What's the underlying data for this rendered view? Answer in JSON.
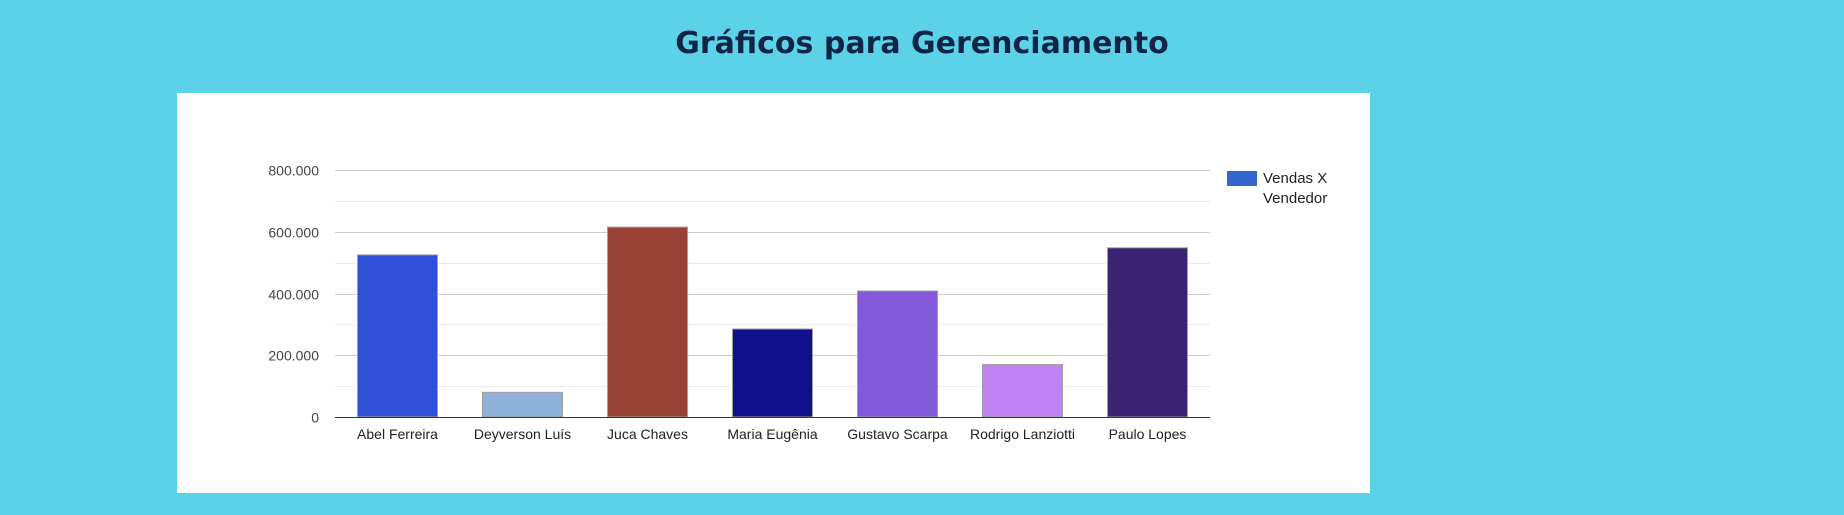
{
  "page": {
    "title": "Gráficos para Gerenciamento"
  },
  "chart_data": {
    "type": "bar",
    "categories": [
      "Abel Ferreira",
      "Deyverson Luís",
      "Juca Chaves",
      "Maria Eugênia",
      "Gustavo Scarpa",
      "Rodrigo Lanziotti",
      "Paulo Lopes"
    ],
    "series": [
      {
        "name": "Vendas X Vendedor",
        "values": [
          525000,
          80000,
          615000,
          285000,
          408000,
          170000,
          548000
        ]
      }
    ],
    "bar_colors": [
      "#3050d8",
      "#8fb1da",
      "#974235",
      "#120f8a",
      "#8359db",
      "#bd83f2",
      "#3a2373"
    ],
    "legend_color": "#3366cc",
    "ylim": [
      0,
      800000
    ],
    "y_ticks": [
      0,
      200000,
      400000,
      600000,
      800000
    ],
    "y_tick_labels": [
      "0",
      "200.000",
      "400.000",
      "600.000",
      "800.000"
    ],
    "grid": true,
    "legend_position": "right",
    "title": "",
    "xlabel": "",
    "ylabel": ""
  }
}
